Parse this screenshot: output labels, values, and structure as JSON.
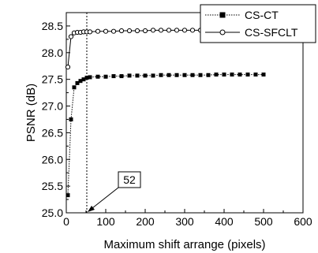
{
  "chart_data": {
    "type": "line",
    "xlabel": "Maximum shift arrange (pixels)",
    "ylabel": "PSNR (dB)",
    "xlim": [
      0,
      600
    ],
    "ylim": [
      25.0,
      28.75
    ],
    "x_ticks": [
      0,
      100,
      200,
      300,
      400,
      500,
      600
    ],
    "x_tick_labels": [
      "0",
      "100",
      "200",
      "300",
      "400",
      "500",
      "600"
    ],
    "y_ticks": [
      25.0,
      25.5,
      26.0,
      26.5,
      27.0,
      27.5,
      28.0,
      28.5
    ],
    "y_tick_labels": [
      "25.0",
      "25.5",
      "26.0",
      "26.5",
      "27.0",
      "27.5",
      "28.0",
      "28.5"
    ],
    "grid": false,
    "legend_position": "top-right",
    "series": [
      {
        "name": "CS-CT",
        "line_style": "dotted",
        "marker": "filled-square",
        "color": "#000000",
        "x": [
          4,
          12,
          20,
          28,
          36,
          44,
          52,
          60,
          80,
          100,
          120,
          140,
          160,
          180,
          200,
          220,
          240,
          260,
          280,
          300,
          320,
          340,
          360,
          380,
          400,
          420,
          440,
          460,
          480,
          500
        ],
        "y": [
          25.33,
          26.75,
          27.35,
          27.43,
          27.47,
          27.5,
          27.53,
          27.54,
          27.55,
          27.55,
          27.56,
          27.56,
          27.57,
          27.57,
          27.57,
          27.57,
          27.58,
          27.58,
          27.58,
          27.58,
          27.58,
          27.58,
          27.58,
          27.59,
          27.59,
          27.59,
          27.59,
          27.59,
          27.59,
          27.59
        ]
      },
      {
        "name": "CS-SFCLT",
        "line_style": "solid",
        "marker": "open-circle",
        "color": "#000000",
        "x": [
          4,
          12,
          20,
          28,
          36,
          44,
          52,
          60,
          80,
          100,
          120,
          140,
          160,
          180,
          200,
          220,
          240,
          260,
          280,
          300,
          320,
          340,
          360,
          380,
          400,
          420,
          440,
          460,
          480,
          500
        ],
        "y": [
          27.73,
          28.3,
          28.37,
          28.38,
          28.38,
          28.39,
          28.39,
          28.39,
          28.4,
          28.4,
          28.4,
          28.41,
          28.41,
          28.41,
          28.41,
          28.42,
          28.42,
          28.42,
          28.42,
          28.42,
          28.42,
          28.42,
          28.43,
          28.43,
          28.43,
          28.43,
          28.43,
          28.43,
          28.44,
          28.44
        ]
      }
    ],
    "reference_line": {
      "x": 52,
      "style": "dotted"
    },
    "annotations": [
      {
        "text": "52",
        "points_to_x": 52
      }
    ]
  }
}
